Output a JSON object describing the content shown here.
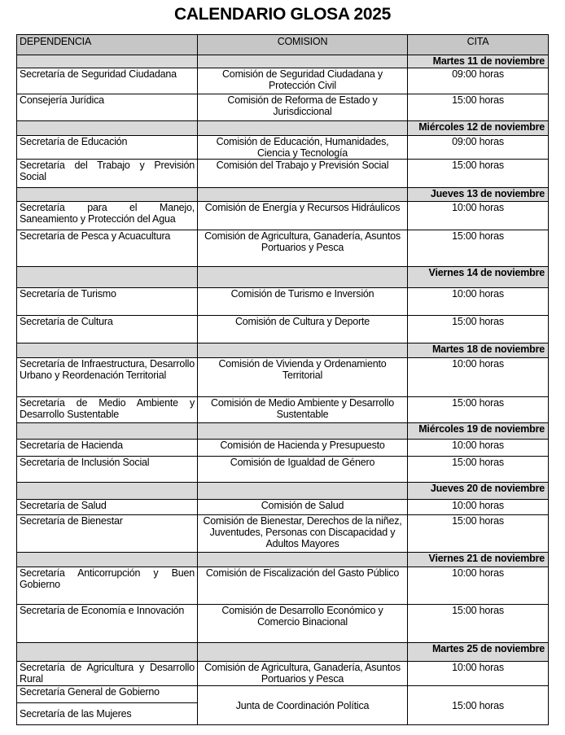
{
  "title": "CALENDARIO GLOSA 2025",
  "headers": {
    "dependencia": "DEPENDENCIA",
    "comision": "COMISION",
    "cita": "CITA"
  },
  "days": [
    {
      "date": "Martes 11 de noviembre",
      "rows": [
        {
          "dependencia": "Secretaría de Seguridad Ciudadana",
          "comision": "Comisión de Seguridad Ciudadana y Protección Civil",
          "cita": "09:00 horas"
        },
        {
          "dependencia": "Consejería Jurídica",
          "comision": "Comisión de Reforma de Estado y Jurisdiccional",
          "cita": "15:00 horas"
        }
      ]
    },
    {
      "date": "Miércoles 12 de noviembre",
      "rows": [
        {
          "dependencia": "Secretaría de Educación",
          "comision": "Comisión de Educación, Humanidades, Ciencia y Tecnología",
          "cita": "09:00 horas"
        },
        {
          "dependencia": "Secretaría del Trabajo y Previsión Social",
          "comision": "Comisión del Trabajo y Previsión Social",
          "cita": "15:00 horas"
        }
      ]
    },
    {
      "date": "Jueves 13 de noviembre",
      "rows": [
        {
          "dependencia": "Secretaría para el Manejo, Saneamiento y Protección del Agua",
          "comision": "Comisión de Energía y Recursos Hidráulicos",
          "cita": "10:00 horas"
        },
        {
          "dependencia": "Secretaría de Pesca y Acuacultura",
          "comision": "Comisión de Agricultura, Ganadería, Asuntos Portuarios y Pesca",
          "cita": "15:00 horas"
        }
      ]
    },
    {
      "date": "Viernes 14 de noviembre",
      "rows": [
        {
          "dependencia": "Secretaría de Turismo",
          "comision": "Comisión de Turismo e Inversión",
          "cita": "10:00 horas"
        },
        {
          "dependencia": "Secretaría de Cultura",
          "comision": "Comisión de Cultura y Deporte",
          "cita": "15:00 horas"
        }
      ]
    },
    {
      "date": "Martes 18 de noviembre",
      "rows": [
        {
          "dependencia": "Secretaría de Infraestructura, Desarrollo Urbano y Reordenación Territorial",
          "comision": "Comisión de Vivienda y Ordenamiento Territorial",
          "cita": "10:00 horas"
        },
        {
          "dependencia": "Secretaría de Medio Ambiente y Desarrollo Sustentable",
          "comision": "Comisión de Medio Ambiente y Desarrollo Sustentable",
          "cita": "15:00 horas"
        }
      ]
    },
    {
      "date": "Miércoles 19 de noviembre",
      "rows": [
        {
          "dependencia": "Secretaría de Hacienda",
          "comision": "Comisión de Hacienda y Presupuesto",
          "cita": "10:00 horas"
        },
        {
          "dependencia": "Secretaría de Inclusión Social",
          "comision": "Comisión de Igualdad de Género",
          "cita": "15:00 horas"
        }
      ]
    },
    {
      "date": "Jueves 20 de noviembre",
      "rows": [
        {
          "dependencia": "Secretaría de Salud",
          "comision": "Comisión de Salud",
          "cita": "10:00 horas"
        },
        {
          "dependencia": "Secretaría de Bienestar",
          "comision": "Comisión de Bienestar, Derechos de la niñez, Juventudes, Personas con Discapacidad y Adultos Mayores",
          "cita": "15:00 horas"
        }
      ]
    },
    {
      "date": "Viernes 21 de noviembre",
      "rows": [
        {
          "dependencia": "Secretaría Anticorrupción y Buen Gobierno",
          "comision": "Comisión de Fiscalización del Gasto Público",
          "cita": "10:00 horas"
        },
        {
          "dependencia": "Secretaría de Economía e Innovación",
          "comision": "Comisión de Desarrollo Económico y Comercio Binacional",
          "cita": "15:00 horas"
        }
      ]
    },
    {
      "date": "Martes 25 de noviembre",
      "rows": [
        {
          "dependencia": "Secretaría de Agricultura y Desarrollo Rural",
          "comision": "Comisión de Agricultura, Ganadería, Asuntos Portuarios y Pesca",
          "cita": "10:00 horas"
        },
        {
          "dependencia": "Secretaría General de Gobierno",
          "comision": "Junta de Coordinación Política",
          "cita": "15:00 horas",
          "extra_dependencia": "Secretaría de las Mujeres"
        }
      ]
    }
  ]
}
